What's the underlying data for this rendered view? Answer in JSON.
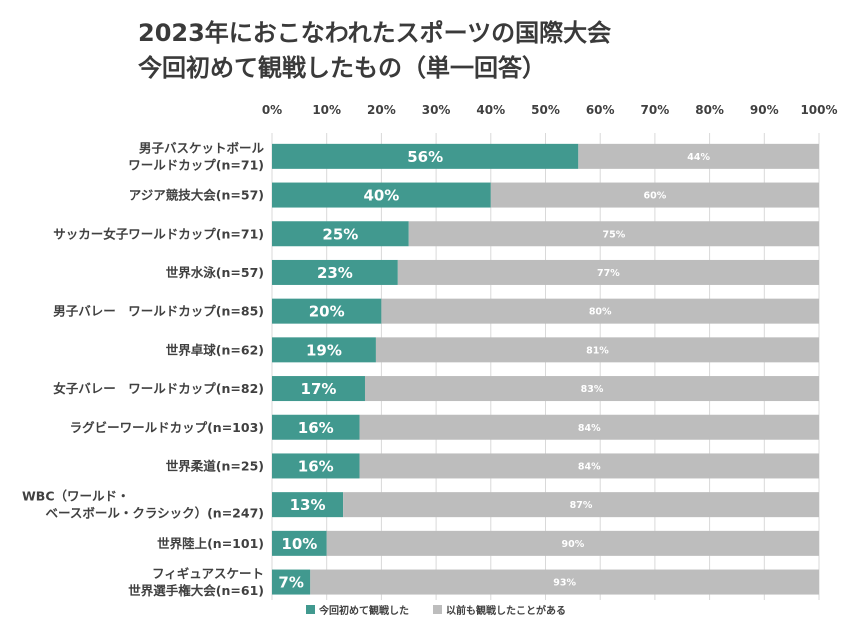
{
  "colors": {
    "first_time": "#41998f",
    "before": "#bdbdbd",
    "grid": "#d9d9d9"
  },
  "chart_data": {
    "type": "bar",
    "orientation": "horizontal",
    "stacked": true,
    "title_lines": [
      "2023年におこなわれたスポーツの国際大会",
      "今回初めて観戦したもの（単一回答）"
    ],
    "x_ticks": [
      "0%",
      "10%",
      "20%",
      "30%",
      "40%",
      "50%",
      "60%",
      "70%",
      "80%",
      "90%",
      "100%"
    ],
    "xlim": [
      0,
      100
    ],
    "categories": [
      [
        "男子バスケットボール",
        "ワールドカップ(n=71)"
      ],
      [
        "アジア競技大会(n=57)"
      ],
      [
        "サッカー女子ワールドカップ(n=71)"
      ],
      [
        "世界水泳(n=57)"
      ],
      [
        "男子バレー　ワールドカップ(n=85)"
      ],
      [
        "世界卓球(n=62)"
      ],
      [
        "女子バレー　ワールドカップ(n=82)"
      ],
      [
        "ラグビーワールドカップ(n=103)"
      ],
      [
        "世界柔道(n=25)"
      ],
      [
        "WBC（ワールド・",
        "ベースボール・クラシック）(n=247)"
      ],
      [
        "世界陸上(n=101)"
      ],
      [
        "フィギュアスケート",
        "世界選手権大会(n=61)"
      ]
    ],
    "series": [
      {
        "name": "今回初めて観戦した",
        "values": [
          56,
          40,
          25,
          23,
          20,
          19,
          17,
          16,
          16,
          13,
          10,
          7
        ],
        "labels": [
          "56%",
          "40%",
          "25%",
          "23%",
          "20%",
          "19%",
          "17%",
          "16%",
          "16%",
          "13%",
          "10%",
          "7%"
        ]
      },
      {
        "name": "以前も観戦したことがある",
        "values": [
          44,
          60,
          75,
          77,
          80,
          81,
          83,
          84,
          84,
          87,
          90,
          93
        ],
        "labels": [
          "44%",
          "60%",
          "75%",
          "77%",
          "80%",
          "81%",
          "83%",
          "84%",
          "84%",
          "87%",
          "90%",
          "93%"
        ]
      }
    ]
  }
}
